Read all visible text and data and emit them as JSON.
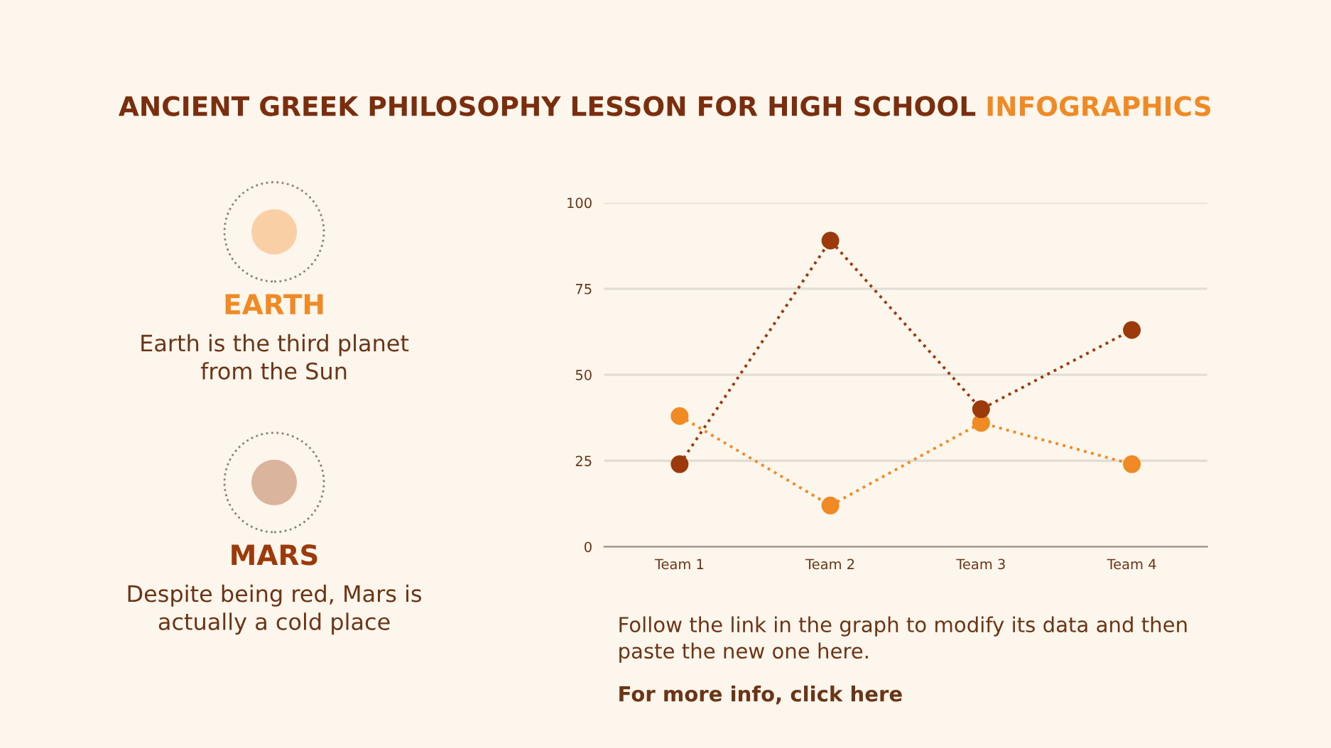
{
  "chart_data": {
    "type": "line",
    "title": "ANCIENT GREEK PHILOSOPHY LESSON FOR HIGH SCHOOL INFOGRAPHICS",
    "categories": [
      "Team 1",
      "Team 2",
      "Team 3",
      "Team 4"
    ],
    "series": [
      {
        "name": "EARTH",
        "color": "#f08a24",
        "values": [
          38,
          12,
          36,
          24
        ]
      },
      {
        "name": "MARS",
        "color": "#9c3a0c",
        "values": [
          24,
          89,
          40,
          63
        ]
      }
    ],
    "ylim": [
      0,
      100
    ],
    "yticks": [
      0,
      25,
      50,
      75,
      100
    ],
    "grid": "y",
    "legend": "left",
    "marker": "circle",
    "line_style": "dotted",
    "annotations": [
      "Earth is the third planet from the Sun",
      "Despite being red, Mars is actually a cold place",
      "Follow the link in the graph to modify its data and then paste the new one here.",
      "For more info, click here"
    ]
  }
}
